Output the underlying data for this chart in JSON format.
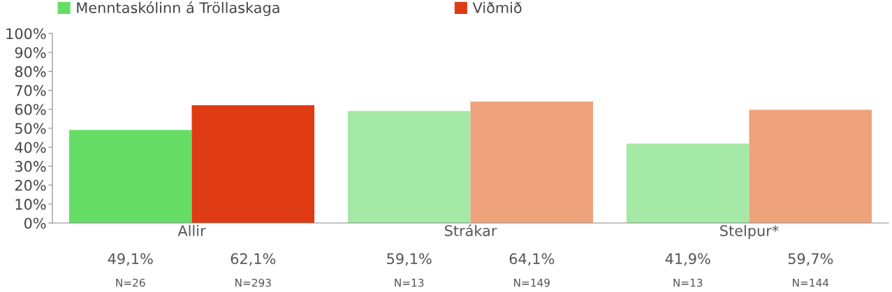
{
  "chart_data": {
    "type": "bar",
    "categories": [
      "Allir",
      "Strákar",
      "Stelpur*"
    ],
    "series": [
      {
        "name": "Menntaskólinn á Tröllaskaga",
        "color": "#66dd66",
        "colors": [
          "#66dd66",
          "#a4e9a5",
          "#a4e9a5"
        ],
        "values": [
          49.1,
          59.1,
          41.9
        ],
        "value_labels": [
          "49,1%\nN=26",
          "59,1%\nN=13",
          "41,9%\nN=13"
        ]
      },
      {
        "name": "Viðmið",
        "color": "#de3a14",
        "colors": [
          "#de3a14",
          "#eea27c",
          "#eea27c"
        ],
        "values": [
          62.1,
          64.1,
          59.7
        ],
        "value_labels": [
          "62,1%\nN=293",
          "64,1%\nN=149",
          "59,7%\nN=144"
        ]
      }
    ],
    "ylim": [
      0,
      100
    ],
    "yticks": [
      {
        "value": 0,
        "label": "0%"
      },
      {
        "value": 10,
        "label": "10%"
      },
      {
        "value": 20,
        "label": "20%"
      },
      {
        "value": 30,
        "label": "30%"
      },
      {
        "value": 40,
        "label": "40%"
      },
      {
        "value": 50,
        "label": "50%"
      },
      {
        "value": 60,
        "label": "60%"
      },
      {
        "value": 70,
        "label": "70%"
      },
      {
        "value": 80,
        "label": "80%"
      },
      {
        "value": 90,
        "label": "90%"
      },
      {
        "value": 100,
        "label": "100%"
      }
    ],
    "grid": false,
    "legend": "top"
  }
}
